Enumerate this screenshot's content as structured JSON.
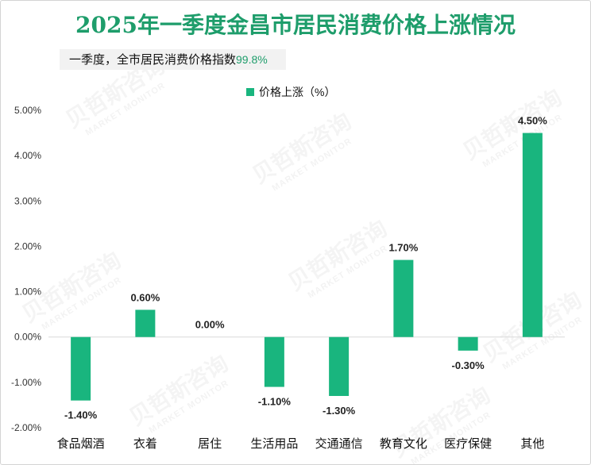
{
  "colors": {
    "title": "#1e9d6b",
    "bar": "#19b57e",
    "highlight": "#1e9d6b",
    "axis_line": "#d9d9d9",
    "summary_bg": "#f2f2f2"
  },
  "watermark": {
    "cn": "贝哲斯咨询",
    "en": "MARKET MONITOR"
  },
  "chart_data": {
    "type": "bar",
    "title": "2025年一季度金昌市居民消费价格上涨情况",
    "annotation": {
      "text": "一季度，全市居民消费价格指数",
      "value": "99.8%"
    },
    "categories": [
      "食品烟酒",
      "衣着",
      "居住",
      "生活用品",
      "交通通信",
      "教育文化",
      "医疗保健",
      "其他"
    ],
    "series": [
      {
        "name": "价格上涨（%）",
        "values": [
          -1.4,
          0.6,
          0.0,
          -1.1,
          -1.3,
          1.7,
          -0.3,
          4.5
        ]
      }
    ],
    "value_labels": [
      "-1.40%",
      "0.60%",
      "0.00%",
      "-1.10%",
      "-1.30%",
      "1.70%",
      "-0.30%",
      "4.50%"
    ],
    "ylim": [
      -2,
      5
    ],
    "yticks": [
      5,
      4,
      3,
      2,
      1,
      0,
      -1,
      -2
    ],
    "ytick_labels": [
      "5.00%",
      "4.00%",
      "3.00%",
      "2.00%",
      "1.00%",
      "0.00%",
      "-1.00%",
      "-2.00%"
    ],
    "legend": "top",
    "grid": false
  }
}
